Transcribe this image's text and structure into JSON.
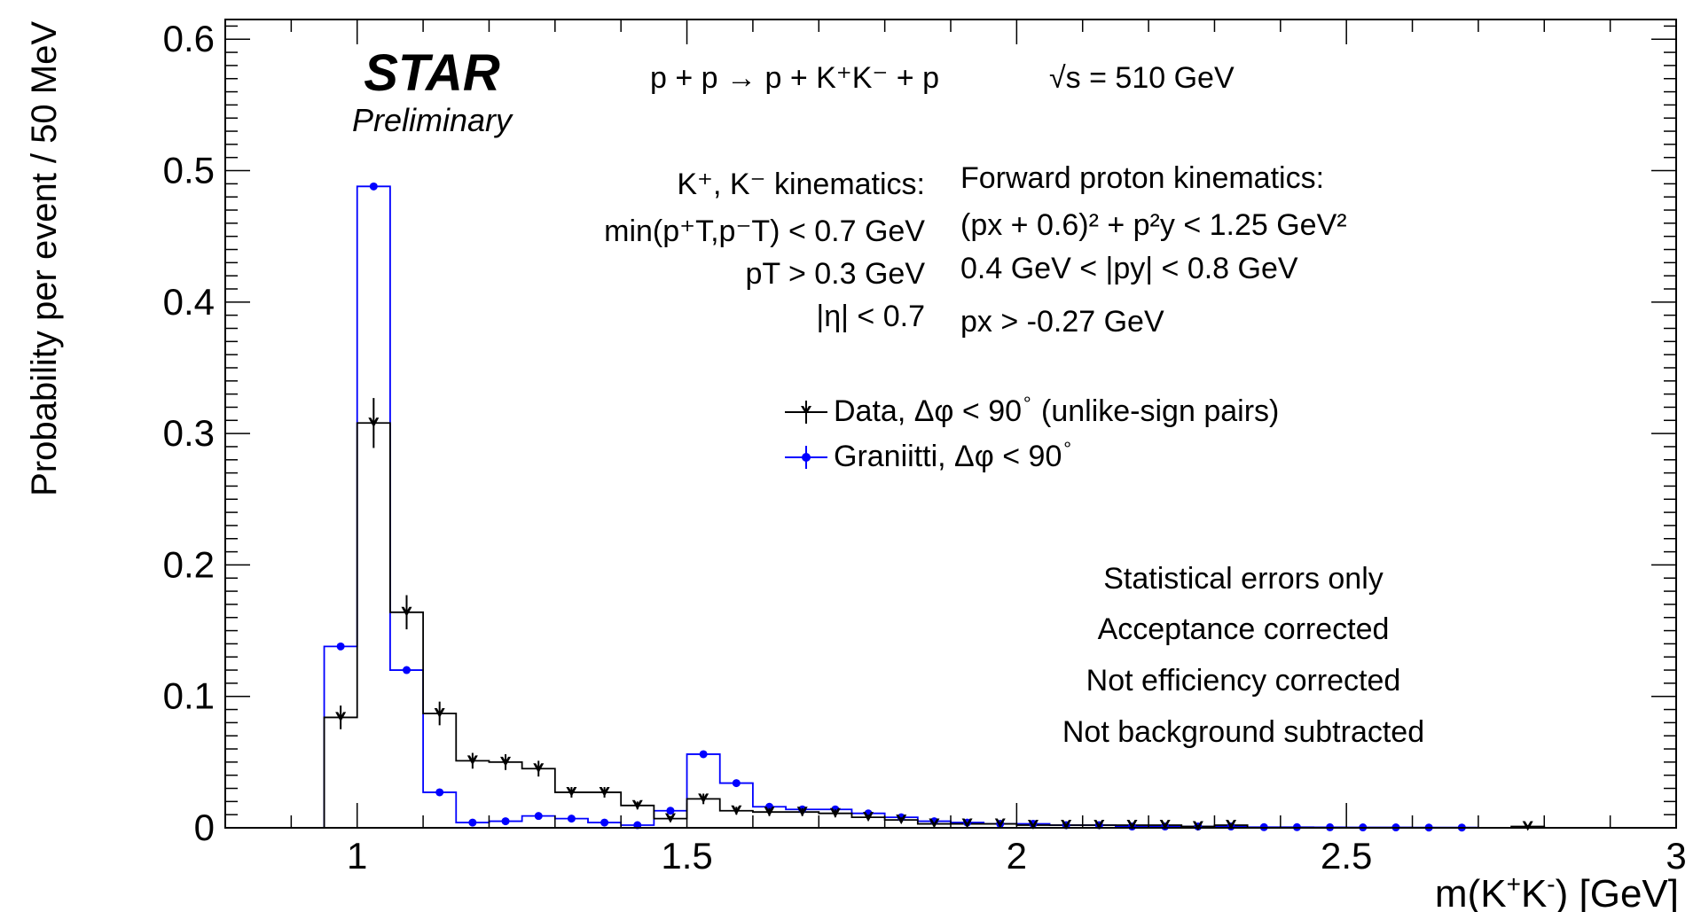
{
  "chart_data": {
    "type": "histogram",
    "xlabel_main": "m(K",
    "xlabel_sup1": "+",
    "xlabel_mid": "K",
    "xlabel_sup2": "-",
    "xlabel_end": ") [GeV]",
    "ylabel": "Probability per event / 50 MeV",
    "xlim": [
      0.8,
      3.0
    ],
    "ylim": [
      0,
      0.615
    ],
    "x_ticks": [
      {
        "value": 1.0,
        "label": "1"
      },
      {
        "value": 1.5,
        "label": "1.5"
      },
      {
        "value": 2.0,
        "label": "2"
      },
      {
        "value": 2.5,
        "label": "2.5"
      },
      {
        "value": 3.0,
        "label": "3"
      }
    ],
    "y_ticks": [
      {
        "value": 0.0,
        "label": "0"
      },
      {
        "value": 0.1,
        "label": "0.1"
      },
      {
        "value": 0.2,
        "label": "0.2"
      },
      {
        "value": 0.3,
        "label": "0.3"
      },
      {
        "value": 0.4,
        "label": "0.4"
      },
      {
        "value": 0.5,
        "label": "0.5"
      },
      {
        "value": 0.6,
        "label": "0.6"
      }
    ],
    "bin_width": 0.05,
    "series": [
      {
        "name": "Data, Δφ < 90",
        "name_sup": "∘",
        "name_tail": " (unlike-sign pairs)",
        "color": "#000000",
        "bins": [
          {
            "x": 0.975,
            "y": 0.084,
            "err": 0.009
          },
          {
            "x": 1.025,
            "y": 0.308,
            "err": 0.019
          },
          {
            "x": 1.075,
            "y": 0.164,
            "err": 0.013
          },
          {
            "x": 1.125,
            "y": 0.087,
            "err": 0.009
          },
          {
            "x": 1.175,
            "y": 0.051,
            "err": 0.006
          },
          {
            "x": 1.225,
            "y": 0.05,
            "err": 0.006
          },
          {
            "x": 1.275,
            "y": 0.045,
            "err": 0.006
          },
          {
            "x": 1.325,
            "y": 0.027,
            "err": 0.004
          },
          {
            "x": 1.375,
            "y": 0.027,
            "err": 0.004
          },
          {
            "x": 1.425,
            "y": 0.017,
            "err": 0.003
          },
          {
            "x": 1.475,
            "y": 0.007,
            "err": 0.002
          },
          {
            "x": 1.525,
            "y": 0.022,
            "err": 0.004
          },
          {
            "x": 1.575,
            "y": 0.013,
            "err": 0.003
          },
          {
            "x": 1.625,
            "y": 0.012,
            "err": 0.003
          },
          {
            "x": 1.675,
            "y": 0.012,
            "err": 0.003
          },
          {
            "x": 1.725,
            "y": 0.011,
            "err": 0.003
          },
          {
            "x": 1.775,
            "y": 0.008,
            "err": 0.002
          },
          {
            "x": 1.825,
            "y": 0.006,
            "err": 0.002
          },
          {
            "x": 1.875,
            "y": 0.003,
            "err": 0.001
          },
          {
            "x": 1.925,
            "y": 0.003,
            "err": 0.001
          },
          {
            "x": 1.975,
            "y": 0.003,
            "err": 0.001
          },
          {
            "x": 2.025,
            "y": 0.002,
            "err": 0.001
          },
          {
            "x": 2.075,
            "y": 0.002,
            "err": 0.001
          },
          {
            "x": 2.125,
            "y": 0.002,
            "err": 0.001
          },
          {
            "x": 2.175,
            "y": 0.002,
            "err": 0.001
          },
          {
            "x": 2.225,
            "y": 0.002,
            "err": 0.001
          },
          {
            "x": 2.275,
            "y": 0.001,
            "err": 0.001
          },
          {
            "x": 2.325,
            "y": 0.002,
            "err": 0.001
          },
          {
            "x": 2.775,
            "y": 0.001,
            "err": 0.001
          }
        ]
      },
      {
        "name": "Graniitti, Δφ < 90",
        "name_sup": "∘",
        "name_tail": "",
        "color": "#0000ff",
        "bins": [
          {
            "x": 0.975,
            "y": 0.138
          },
          {
            "x": 1.025,
            "y": 0.488
          },
          {
            "x": 1.075,
            "y": 0.12
          },
          {
            "x": 1.125,
            "y": 0.027
          },
          {
            "x": 1.175,
            "y": 0.004
          },
          {
            "x": 1.225,
            "y": 0.005
          },
          {
            "x": 1.275,
            "y": 0.009
          },
          {
            "x": 1.325,
            "y": 0.007
          },
          {
            "x": 1.375,
            "y": 0.004
          },
          {
            "x": 1.425,
            "y": 0.002
          },
          {
            "x": 1.475,
            "y": 0.013
          },
          {
            "x": 1.525,
            "y": 0.056
          },
          {
            "x": 1.575,
            "y": 0.034
          },
          {
            "x": 1.625,
            "y": 0.016
          },
          {
            "x": 1.675,
            "y": 0.014
          },
          {
            "x": 1.725,
            "y": 0.014
          },
          {
            "x": 1.775,
            "y": 0.011
          },
          {
            "x": 1.825,
            "y": 0.008
          },
          {
            "x": 1.875,
            "y": 0.005
          },
          {
            "x": 1.925,
            "y": 0.004
          },
          {
            "x": 1.975,
            "y": 0.003
          },
          {
            "x": 2.025,
            "y": 0.003
          },
          {
            "x": 2.075,
            "y": 0.002
          },
          {
            "x": 2.125,
            "y": 0.002
          },
          {
            "x": 2.175,
            "y": 0.001
          },
          {
            "x": 2.225,
            "y": 0.001
          },
          {
            "x": 2.275,
            "y": 0.001
          },
          {
            "x": 2.325,
            "y": 0.001
          },
          {
            "x": 2.375,
            "y": 0.0005
          },
          {
            "x": 2.425,
            "y": 0.0005
          },
          {
            "x": 2.475,
            "y": 0.0004
          },
          {
            "x": 2.525,
            "y": 0.0003
          },
          {
            "x": 2.575,
            "y": 0.0003
          },
          {
            "x": 2.625,
            "y": 0.0002
          },
          {
            "x": 2.675,
            "y": 0.0002
          }
        ]
      }
    ],
    "annotations": {
      "star": "STAR",
      "preliminary": "Preliminary",
      "reaction": "p + p → p + K⁺K⁻ + p",
      "energy": "√s = 510 GeV",
      "kaon_title": "K⁺, K⁻ kinematics:",
      "kaon_cut1": "min(p⁺T,p⁻T) < 0.7 GeV",
      "kaon_cut2": "pT > 0.3 GeV",
      "kaon_cut3": "|η| < 0.7",
      "proton_title": "Forward proton kinematics:",
      "proton_cut1": "(px + 0.6)² + p²y < 1.25 GeV²",
      "proton_cut2": "0.4 GeV < |py| < 0.8 GeV",
      "proton_cut3": "px > -0.27 GeV",
      "note1": "Statistical errors only",
      "note2": "Acceptance corrected",
      "note3": "Not efficiency corrected",
      "note4": "Not background subtracted"
    },
    "grid": false,
    "legend_position": "center"
  }
}
